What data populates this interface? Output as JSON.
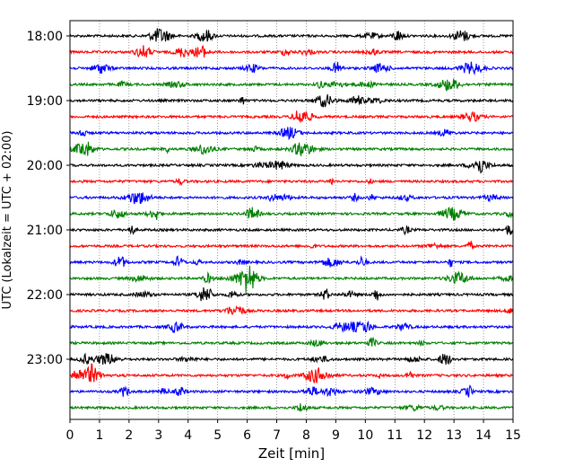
{
  "chart_data": {
    "type": "line",
    "title": "",
    "xlabel": "Zeit  [min]",
    "ylabel": "UTC (Lokalzeit = UTC + 02:00)",
    "xlim": [
      0,
      15
    ],
    "x_ticks": [
      "0",
      "1",
      "2",
      "3",
      "4",
      "5",
      "6",
      "7",
      "8",
      "9",
      "10",
      "11",
      "12",
      "13",
      "14",
      "15"
    ],
    "y_ticks": [
      "18:00",
      "19:00",
      "20:00",
      "21:00",
      "22:00",
      "23:00"
    ],
    "vertical_grid": "dotted",
    "trace_interval_min": 15,
    "trace_start": "18:00",
    "trace_end": "23:45",
    "trace_count": 24,
    "trace_colors": [
      "#000000",
      "#ff0000",
      "#0000ff",
      "#008000"
    ],
    "trace_color_names": [
      "black",
      "red",
      "blue",
      "green"
    ]
  }
}
